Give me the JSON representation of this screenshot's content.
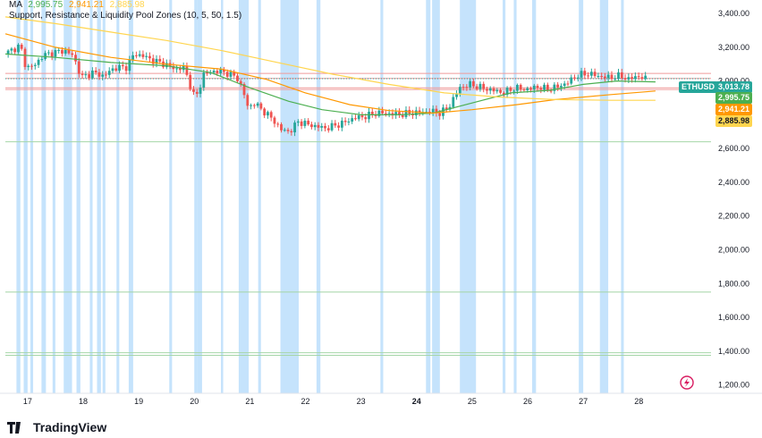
{
  "legend": {
    "ma_label": "MA",
    "ma_values": [
      "2,995.75",
      "2,941.21",
      "2,885.98"
    ],
    "sr_label": "Support, Resistance & Liquidity Pool Zones (10, 5, 50, 1.5)"
  },
  "brand": {
    "name": "TradingView"
  },
  "tags": {
    "symbol": "ETHUSD",
    "price": "3,013.78",
    "ma1": "2,995.75",
    "ma2": "2,941.21",
    "ma3": "2,885.98"
  },
  "colors": {
    "candle_up": "#26a69a",
    "candle_down": "#ef5350",
    "ma_fast": "#4caf50",
    "ma_mid": "#ff9800",
    "ma_slow": "#ffd54f",
    "zone_band": "#bbdefb",
    "resistance_line": "#ef9a9a",
    "support_line": "#a5d6a7",
    "price_tag": "#26a69a",
    "ma1_tag": "#4caf50",
    "ma2_tag": "#ff9800",
    "ma3_tag": "#ffd54f"
  },
  "chart_data": {
    "type": "candlestick",
    "symbol": "ETHUSD",
    "y_ticks": [
      3400,
      3200,
      3000,
      2800,
      2600,
      2400,
      2200,
      2000,
      1800,
      1600,
      1400,
      1200
    ],
    "y_tick_labels": [
      "3,400.00",
      "3,200.00",
      "3,000.00",
      "2,800.00",
      "2,600.00",
      "2,400.00",
      "2,200.00",
      "2,000.00",
      "1,800.00",
      "1,600.00",
      "1,400.00",
      "1,200.00"
    ],
    "ylim": [
      1150,
      3480
    ],
    "x_labels": [
      "17",
      "18",
      "19",
      "20",
      "21",
      "22",
      "23",
      "24",
      "25",
      "26",
      "27",
      "28"
    ],
    "x_bold": [
      "24"
    ],
    "xlim": [
      16.6,
      29.3
    ],
    "price_path": [
      [
        16.62,
        3160
      ],
      [
        16.78,
        3190
      ],
      [
        16.9,
        3210
      ],
      [
        17.0,
        3080
      ],
      [
        17.15,
        3090
      ],
      [
        17.3,
        3150
      ],
      [
        17.5,
        3170
      ],
      [
        17.7,
        3180
      ],
      [
        17.85,
        3150
      ],
      [
        18.0,
        3020
      ],
      [
        18.2,
        3050
      ],
      [
        18.4,
        3030
      ],
      [
        18.6,
        3080
      ],
      [
        18.8,
        3080
      ],
      [
        18.95,
        3160
      ],
      [
        19.1,
        3150
      ],
      [
        19.3,
        3120
      ],
      [
        19.5,
        3100
      ],
      [
        19.7,
        3070
      ],
      [
        19.85,
        3080
      ],
      [
        19.95,
        2980
      ],
      [
        20.05,
        2890
      ],
      [
        20.2,
        3040
      ],
      [
        20.4,
        3060
      ],
      [
        20.6,
        3050
      ],
      [
        20.8,
        3020
      ],
      [
        20.9,
        2950
      ],
      [
        21.0,
        2840
      ],
      [
        21.1,
        2870
      ],
      [
        21.25,
        2830
      ],
      [
        21.45,
        2770
      ],
      [
        21.6,
        2710
      ],
      [
        21.75,
        2700
      ],
      [
        21.9,
        2760
      ],
      [
        22.1,
        2740
      ],
      [
        22.4,
        2720
      ],
      [
        22.7,
        2750
      ],
      [
        22.9,
        2780
      ],
      [
        23.1,
        2790
      ],
      [
        23.3,
        2810
      ],
      [
        23.5,
        2810
      ],
      [
        23.7,
        2800
      ],
      [
        23.9,
        2810
      ],
      [
        24.1,
        2815
      ],
      [
        24.3,
        2820
      ],
      [
        24.45,
        2810
      ],
      [
        24.6,
        2840
      ],
      [
        24.8,
        2960
      ],
      [
        25.0,
        2980
      ],
      [
        25.2,
        2960
      ],
      [
        25.4,
        2945
      ],
      [
        25.6,
        2930
      ],
      [
        25.8,
        2960
      ],
      [
        26.0,
        2950
      ],
      [
        26.2,
        2965
      ],
      [
        26.4,
        2950
      ],
      [
        26.6,
        2970
      ],
      [
        26.75,
        2990
      ],
      [
        26.9,
        3030
      ],
      [
        27.1,
        3045
      ],
      [
        27.3,
        3030
      ],
      [
        27.5,
        3020
      ],
      [
        27.7,
        3030
      ],
      [
        27.85,
        3010
      ],
      [
        28.0,
        3030
      ],
      [
        28.15,
        3013
      ]
    ],
    "series": [
      {
        "name": "MA 10",
        "values": [
          [
            16.6,
            3160
          ],
          [
            17.5,
            3140
          ],
          [
            18.5,
            3110
          ],
          [
            19.5,
            3090
          ],
          [
            20.3,
            3050
          ],
          [
            21.0,
            2960
          ],
          [
            21.7,
            2880
          ],
          [
            22.3,
            2830
          ],
          [
            23.0,
            2800
          ],
          [
            23.7,
            2800
          ],
          [
            24.3,
            2810
          ],
          [
            25.0,
            2870
          ],
          [
            25.7,
            2930
          ],
          [
            26.4,
            2945
          ],
          [
            27.0,
            2980
          ],
          [
            27.6,
            3000
          ],
          [
            28.3,
            2995
          ]
        ]
      },
      {
        "name": "MA 5",
        "values": [
          [
            16.6,
            3280
          ],
          [
            17.5,
            3200
          ],
          [
            18.5,
            3140
          ],
          [
            19.5,
            3100
          ],
          [
            20.5,
            3070
          ],
          [
            21.3,
            3010
          ],
          [
            22.0,
            2930
          ],
          [
            22.8,
            2860
          ],
          [
            23.5,
            2825
          ],
          [
            24.3,
            2810
          ],
          [
            25.0,
            2830
          ],
          [
            25.8,
            2860
          ],
          [
            26.5,
            2890
          ],
          [
            27.5,
            2920
          ],
          [
            28.3,
            2941
          ]
        ]
      },
      {
        "name": "MA 50",
        "values": [
          [
            16.6,
            3380
          ],
          [
            17.5,
            3340
          ],
          [
            18.5,
            3290
          ],
          [
            19.5,
            3240
          ],
          [
            20.5,
            3180
          ],
          [
            21.5,
            3110
          ],
          [
            22.5,
            3040
          ],
          [
            23.5,
            2980
          ],
          [
            24.5,
            2930
          ],
          [
            25.5,
            2905
          ],
          [
            26.5,
            2890
          ],
          [
            27.5,
            2886
          ],
          [
            28.3,
            2886
          ]
        ]
      }
    ],
    "zone_bands_x": [
      [
        16.8,
        16.87
      ],
      [
        16.93,
        17.0
      ],
      [
        17.05,
        17.1
      ],
      [
        17.25,
        17.33
      ],
      [
        17.45,
        17.5
      ],
      [
        17.65,
        17.8
      ],
      [
        17.88,
        17.95
      ],
      [
        18.12,
        18.17
      ],
      [
        18.25,
        18.32
      ],
      [
        18.35,
        18.4
      ],
      [
        18.6,
        18.65
      ],
      [
        18.82,
        18.9
      ],
      [
        19.55,
        19.6
      ],
      [
        20.0,
        20.05
      ],
      [
        20.05,
        20.14
      ],
      [
        20.48,
        20.52
      ],
      [
        20.8,
        20.98
      ],
      [
        21.15,
        21.2
      ],
      [
        21.55,
        21.88
      ],
      [
        22.2,
        22.27
      ],
      [
        23.35,
        23.4
      ],
      [
        24.17,
        24.25
      ],
      [
        24.28,
        24.42
      ],
      [
        24.78,
        25.07
      ],
      [
        25.55,
        25.6
      ],
      [
        25.75,
        25.8
      ],
      [
        26.08,
        26.15
      ],
      [
        26.92,
        27.0
      ],
      [
        27.3,
        27.45
      ],
      [
        27.68,
        27.73
      ]
    ],
    "resistance_levels": [
      3045,
      3015,
      2960,
      2950
    ],
    "support_levels": [
      2640,
      1750,
      1390,
      1375
    ],
    "last_price": 3013.78
  }
}
